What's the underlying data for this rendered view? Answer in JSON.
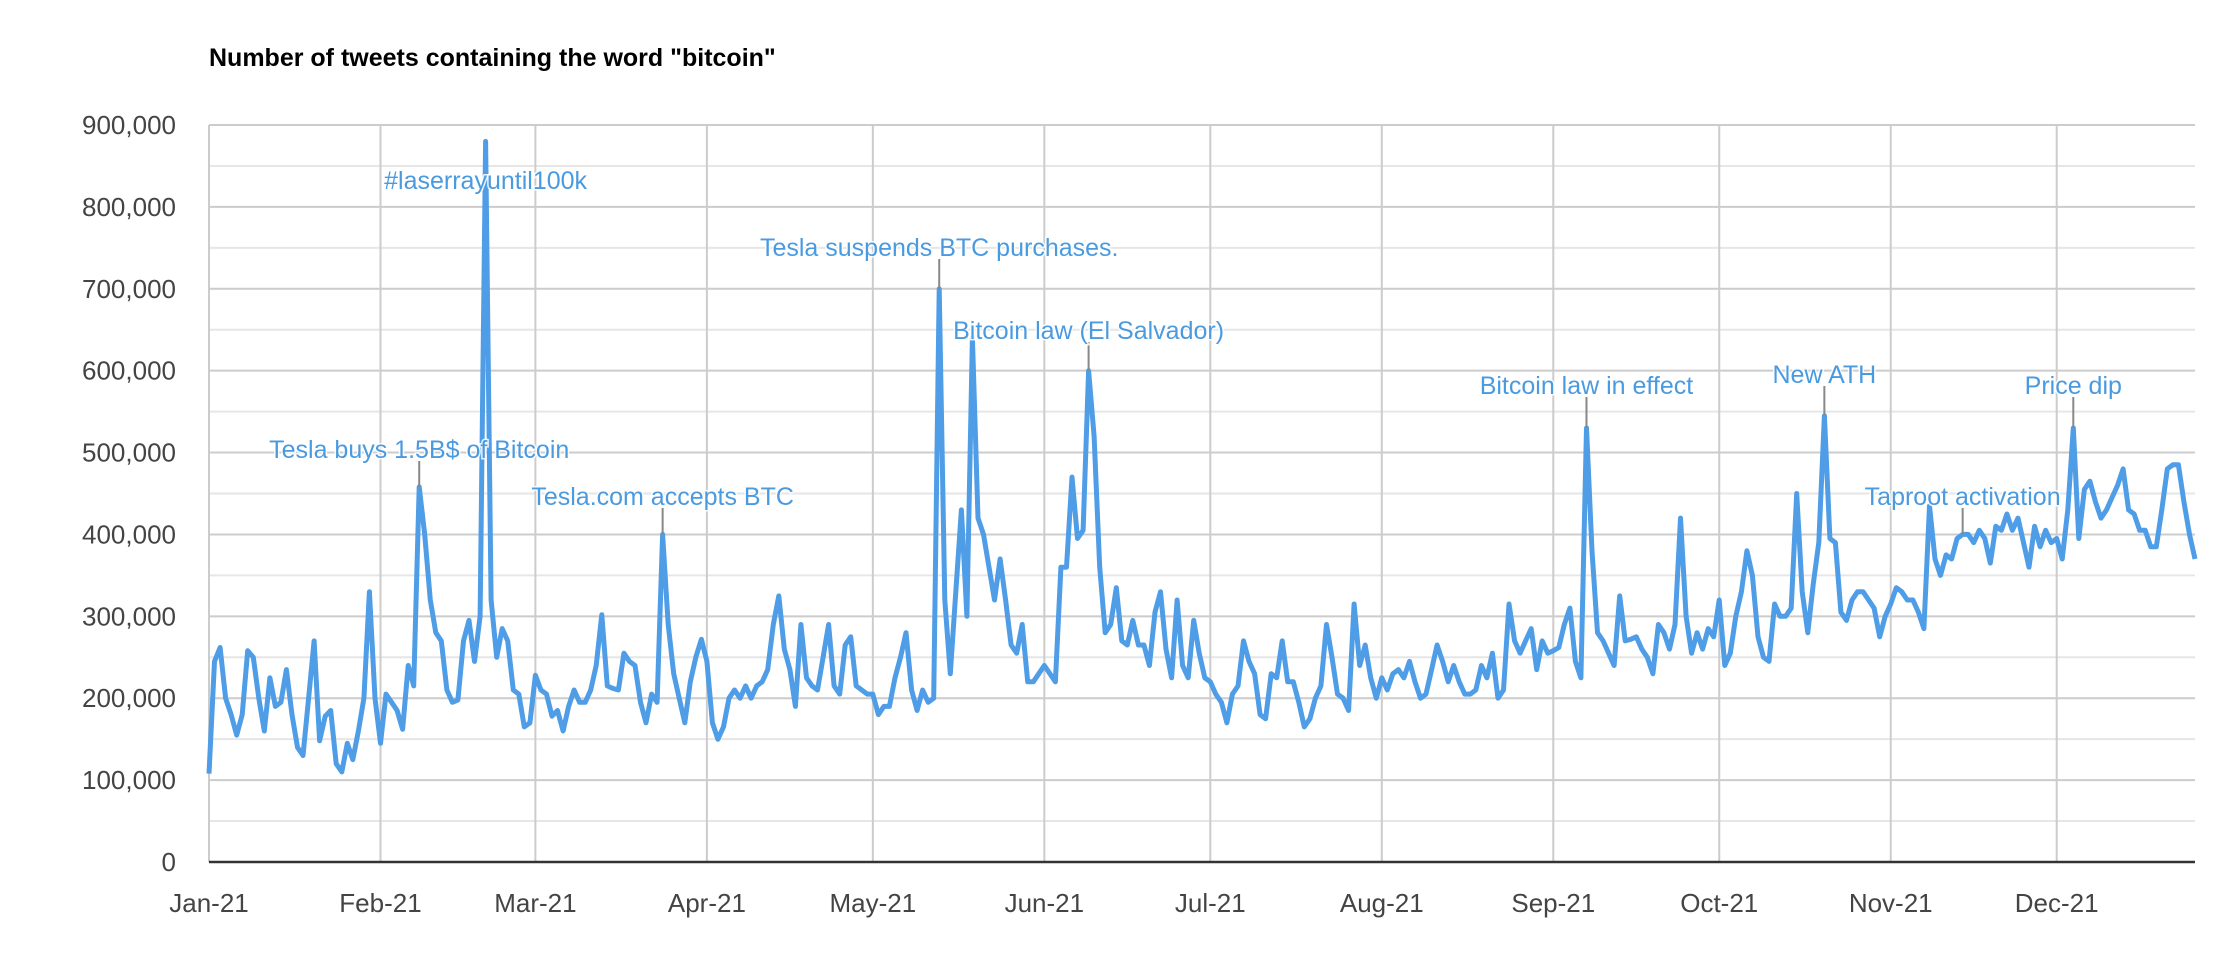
{
  "chart_data": {
    "type": "line",
    "title": "Number of tweets containing the word \"bitcoin\"",
    "xlabel": "",
    "ylabel": "",
    "ylim": [
      0,
      900000
    ],
    "y_ticks": [
      "0",
      "100,000",
      "200,000",
      "300,000",
      "400,000",
      "500,000",
      "600,000",
      "700,000",
      "800,000",
      "900,000"
    ],
    "x_ticks": [
      {
        "label": "Jan-21",
        "date": "2021-01-01"
      },
      {
        "label": "Feb-21",
        "date": "2021-02-01"
      },
      {
        "label": "Mar-21",
        "date": "2021-03-01"
      },
      {
        "label": "Apr-21",
        "date": "2021-04-01"
      },
      {
        "label": "May-21",
        "date": "2021-05-01"
      },
      {
        "label": "Jun-21",
        "date": "2021-06-01"
      },
      {
        "label": "Jul-21",
        "date": "2021-07-01"
      },
      {
        "label": "Aug-21",
        "date": "2021-08-01"
      },
      {
        "label": "Sep-21",
        "date": "2021-09-01"
      },
      {
        "label": "Oct-21",
        "date": "2021-10-01"
      },
      {
        "label": "Nov-21",
        "date": "2021-11-01"
      },
      {
        "label": "Dec-21",
        "date": "2021-12-01"
      }
    ],
    "xlim": [
      "2021-01-01",
      "2021-12-26"
    ],
    "grid": true,
    "line_color": "#4e9de6",
    "annotation_color": "#4a9ae0",
    "series": [
      {
        "daily_values_by_month": {
          "2021-01": [
            108000,
            245000,
            262000,
            200000,
            180000,
            155000,
            180000,
            258000,
            250000,
            200000,
            160000,
            225000,
            190000,
            195000,
            235000,
            180000,
            140000,
            130000,
            200000,
            270000,
            148000,
            178000,
            185000,
            120000,
            110000,
            145000,
            125000,
            160000,
            200000,
            330000,
            200000
          ],
          "2021-02": [
            145000,
            205000,
            195000,
            185000,
            162000,
            240000,
            215000,
            458000,
            400000,
            320000,
            280000,
            270000,
            210000,
            195000,
            198000,
            270000,
            295000,
            245000,
            300000,
            880000,
            320000,
            250000,
            285000,
            270000,
            210000,
            205000,
            165000,
            170000
          ],
          "2021-03": [
            228000,
            210000,
            205000,
            178000,
            185000,
            160000,
            190000,
            210000,
            195000,
            195000,
            210000,
            240000,
            302000,
            215000,
            212000,
            210000,
            255000,
            245000,
            240000,
            195000,
            170000,
            205000,
            195000,
            400000,
            290000,
            230000,
            200000,
            170000,
            220000,
            250000,
            272000
          ],
          "2021-04": [
            245000,
            170000,
            150000,
            165000,
            200000,
            210000,
            200000,
            215000,
            200000,
            215000,
            220000,
            235000,
            290000,
            325000,
            260000,
            235000,
            190000,
            290000,
            225000,
            215000,
            210000,
            250000,
            290000,
            215000,
            205000,
            265000,
            275000,
            215000,
            210000,
            205000
          ],
          "2021-05": [
            205000,
            180000,
            190000,
            190000,
            225000,
            250000,
            280000,
            210000,
            185000,
            210000,
            195000,
            200000,
            700000,
            320000,
            230000,
            330000,
            430000,
            300000,
            640000,
            420000,
            400000,
            360000,
            320000,
            370000,
            320000,
            265000,
            255000,
            290000,
            220000,
            220000,
            230000
          ],
          "2021-06": [
            240000,
            230000,
            220000,
            360000,
            360000,
            470000,
            395000,
            405000,
            600000,
            520000,
            360000,
            280000,
            290000,
            335000,
            270000,
            265000,
            295000,
            265000,
            265000,
            240000,
            305000,
            330000,
            260000,
            225000,
            320000,
            240000,
            225000,
            295000,
            255000,
            225000
          ],
          "2021-07": [
            220000,
            205000,
            195000,
            170000,
            205000,
            215000,
            270000,
            245000,
            230000,
            180000,
            175000,
            230000,
            225000,
            270000,
            220000,
            220000,
            195000,
            165000,
            175000,
            200000,
            215000,
            290000,
            250000,
            205000,
            200000,
            185000,
            315000,
            240000,
            265000,
            225000,
            200000
          ],
          "2021-08": [
            225000,
            210000,
            230000,
            235000,
            225000,
            245000,
            220000,
            200000,
            205000,
            235000,
            265000,
            245000,
            220000,
            240000,
            220000,
            205000,
            205000,
            210000,
            240000,
            225000,
            255000,
            200000,
            210000,
            315000,
            270000,
            255000,
            270000,
            285000,
            235000,
            270000,
            255000
          ],
          "2021-09": [
            258000,
            262000,
            290000,
            310000,
            245000,
            225000,
            530000,
            380000,
            280000,
            270000,
            255000,
            240000,
            325000,
            270000,
            272000,
            275000,
            260000,
            250000,
            230000,
            290000,
            280000,
            260000,
            290000,
            420000,
            300000,
            255000,
            280000,
            260000,
            285000,
            275000
          ],
          "2021-10": [
            320000,
            240000,
            255000,
            300000,
            330000,
            380000,
            350000,
            275000,
            250000,
            245000,
            315000,
            300000,
            300000,
            310000,
            450000,
            330000,
            280000,
            340000,
            390000,
            545000,
            395000,
            390000,
            305000,
            295000,
            320000,
            330000,
            330000,
            320000,
            310000,
            275000,
            300000
          ],
          "2021-11": [
            315000,
            335000,
            330000,
            320000,
            320000,
            305000,
            285000,
            435000,
            370000,
            350000,
            375000,
            370000,
            395000,
            400000,
            400000,
            390000,
            405000,
            395000,
            365000,
            410000,
            405000,
            425000,
            405000,
            420000,
            390000,
            360000,
            410000,
            385000,
            405000,
            390000
          ],
          "2021-12": [
            395000,
            370000,
            430000,
            530000,
            395000,
            455000,
            465000,
            440000,
            420000,
            430000,
            445000,
            460000,
            480000,
            430000,
            425000,
            405000,
            405000,
            385000,
            385000,
            430000,
            480000,
            485000,
            485000,
            440000,
            400000,
            370000
          ]
        }
      }
    ],
    "annotations": [
      {
        "text": "Tesla buys 1.5B$ of Bitcoin",
        "date": "2021-02-08",
        "value": 458000
      },
      {
        "text": "#laserrayuntil100k",
        "date": "2021-02-20",
        "value": 880000
      },
      {
        "text": "Tesla.com accepts BTC",
        "date": "2021-03-24",
        "value": 400000
      },
      {
        "text": "Tesla suspends BTC purchases.",
        "date": "2021-05-13",
        "value": 700000
      },
      {
        "text": "Bitcoin law (El Salvador)",
        "date": "2021-06-09",
        "value": 600000
      },
      {
        "text": "Bitcoin law in effect",
        "date": "2021-09-07",
        "value": 530000
      },
      {
        "text": "New ATH",
        "date": "2021-10-20",
        "value": 545000
      },
      {
        "text": "Taproot activation",
        "date": "2021-11-14",
        "value": 400000
      },
      {
        "text": "Price dip",
        "date": "2021-12-04",
        "value": 530000
      }
    ]
  }
}
